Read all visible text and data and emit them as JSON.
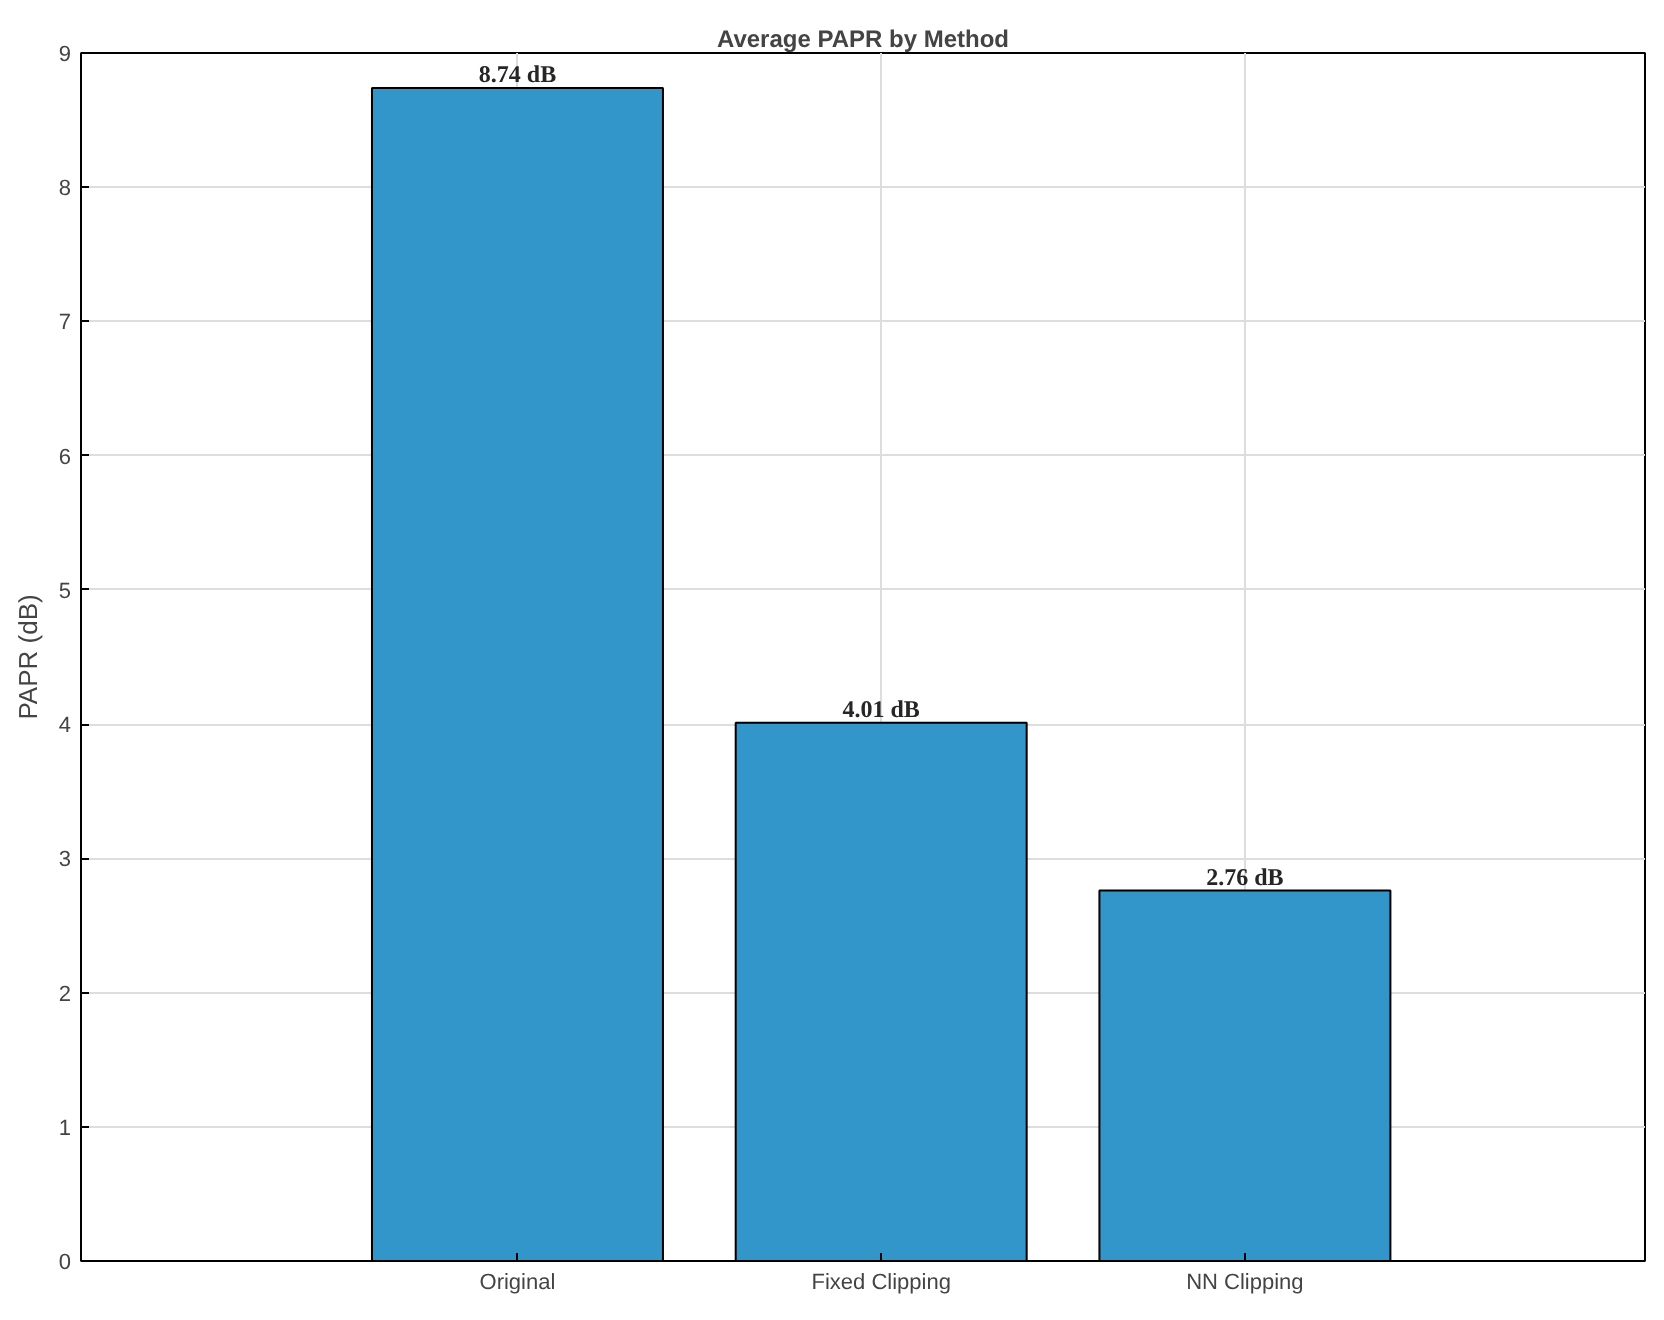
{
  "chart_data": {
    "type": "bar",
    "title": "Average PAPR by Method",
    "ylabel": "PAPR (dB)",
    "categories": [
      "Original",
      "Fixed Clipping",
      "NN Clipping"
    ],
    "values": [
      8.74,
      4.01,
      2.76
    ],
    "color": "#3296cb",
    "value_labels": [
      "8.74 dB",
      "4.01 dB",
      "2.76 dB"
    ],
    "ylim": [
      0,
      9
    ],
    "yticks": [
      0,
      1,
      2,
      3,
      4,
      5,
      6,
      7,
      8,
      9
    ],
    "grid": true
  }
}
